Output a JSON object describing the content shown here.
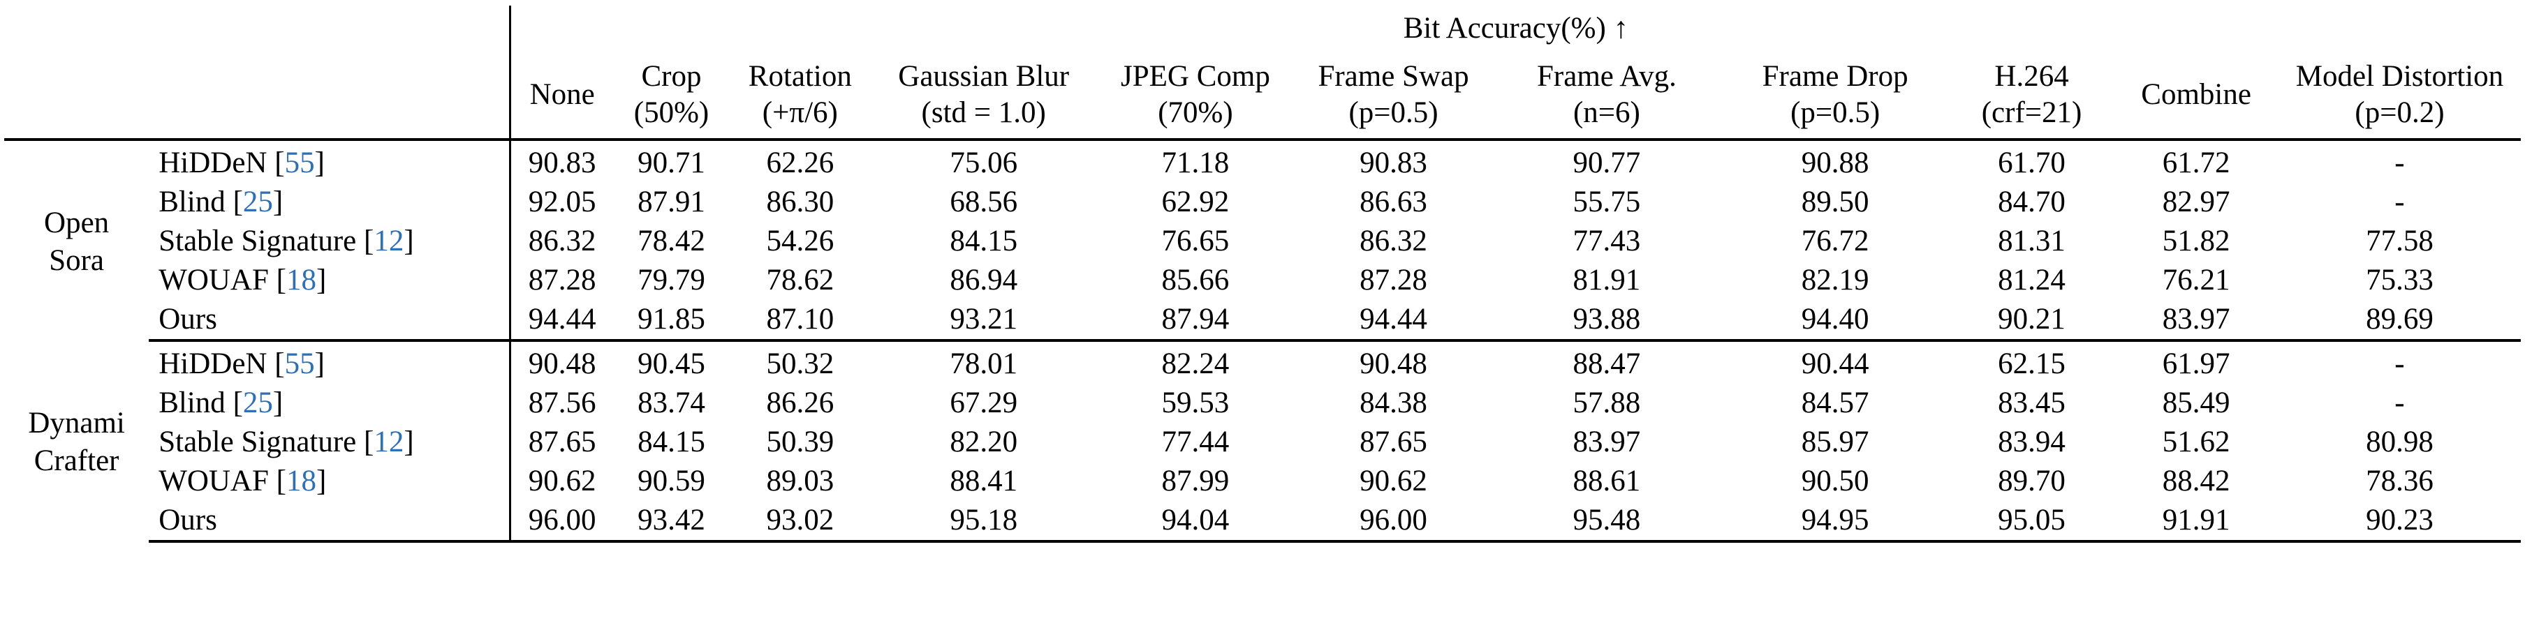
{
  "group_header": "Bit Accuracy(%) ↑",
  "columns": [
    {
      "line1": "None",
      "line2": ""
    },
    {
      "line1": "Crop",
      "line2": "(50%)"
    },
    {
      "line1": "Rotation",
      "line2": "(+π/6)"
    },
    {
      "line1": "Gaussian Blur",
      "line2": "(std = 1.0)"
    },
    {
      "line1": "JPEG Comp",
      "line2": "(70%)"
    },
    {
      "line1": "Frame Swap",
      "line2": "(p=0.5)"
    },
    {
      "line1": "Frame Avg.",
      "line2": "(n=6)"
    },
    {
      "line1": "Frame Drop",
      "line2": "(p=0.5)"
    },
    {
      "line1": "H.264",
      "line2": "(crf=21)"
    },
    {
      "line1": "Combine",
      "line2": ""
    },
    {
      "line1": "Model Distortion",
      "line2": "(p=0.2)"
    }
  ],
  "blocks": [
    {
      "label_line1": "Open",
      "label_line2": "Sora",
      "rows": [
        {
          "method": "HiDDeN",
          "cite": "55",
          "values": [
            "90.83",
            "90.71",
            "62.26",
            "75.06",
            "71.18",
            "90.83",
            "90.77",
            "90.88",
            "61.70",
            "61.72",
            "-"
          ]
        },
        {
          "method": "Blind",
          "cite": "25",
          "values": [
            "92.05",
            "87.91",
            "86.30",
            "68.56",
            "62.92",
            "86.63",
            "55.75",
            "89.50",
            "84.70",
            "82.97",
            "-"
          ]
        },
        {
          "method": "Stable Signature",
          "cite": "12",
          "values": [
            "86.32",
            "78.42",
            "54.26",
            "84.15",
            "76.65",
            "86.32",
            "77.43",
            "76.72",
            "81.31",
            "51.82",
            "77.58"
          ]
        },
        {
          "method": "WOUAF",
          "cite": "18",
          "values": [
            "87.28",
            "79.79",
            "78.62",
            "86.94",
            "85.66",
            "87.28",
            "81.91",
            "82.19",
            "81.24",
            "76.21",
            "75.33"
          ]
        },
        {
          "method": "Ours",
          "cite": "",
          "bold": true,
          "values": [
            "94.44",
            "91.85",
            "87.10",
            "93.21",
            "87.94",
            "94.44",
            "93.88",
            "94.40",
            "90.21",
            "83.97",
            "89.69"
          ]
        }
      ]
    },
    {
      "label_line1": "Dynami",
      "label_line2": "Crafter",
      "rows": [
        {
          "method": "HiDDeN",
          "cite": "55",
          "values": [
            "90.48",
            "90.45",
            "50.32",
            "78.01",
            "82.24",
            "90.48",
            "88.47",
            "90.44",
            "62.15",
            "61.97",
            "-"
          ]
        },
        {
          "method": "Blind",
          "cite": "25",
          "values": [
            "87.56",
            "83.74",
            "86.26",
            "67.29",
            "59.53",
            "84.38",
            "57.88",
            "84.57",
            "83.45",
            "85.49",
            "-"
          ]
        },
        {
          "method": "Stable Signature",
          "cite": "12",
          "values": [
            "87.65",
            "84.15",
            "50.39",
            "82.20",
            "77.44",
            "87.65",
            "83.97",
            "85.97",
            "83.94",
            "51.62",
            "80.98"
          ]
        },
        {
          "method": "WOUAF",
          "cite": "18",
          "values": [
            "90.62",
            "90.59",
            "89.03",
            "88.41",
            "87.99",
            "90.62",
            "88.61",
            "90.50",
            "89.70",
            "88.42",
            "78.36"
          ]
        },
        {
          "method": "Ours",
          "cite": "",
          "bold": true,
          "values": [
            "96.00",
            "93.42",
            "93.02",
            "95.18",
            "94.04",
            "96.00",
            "95.48",
            "94.95",
            "95.05",
            "91.91",
            "90.23"
          ]
        }
      ]
    }
  ]
}
